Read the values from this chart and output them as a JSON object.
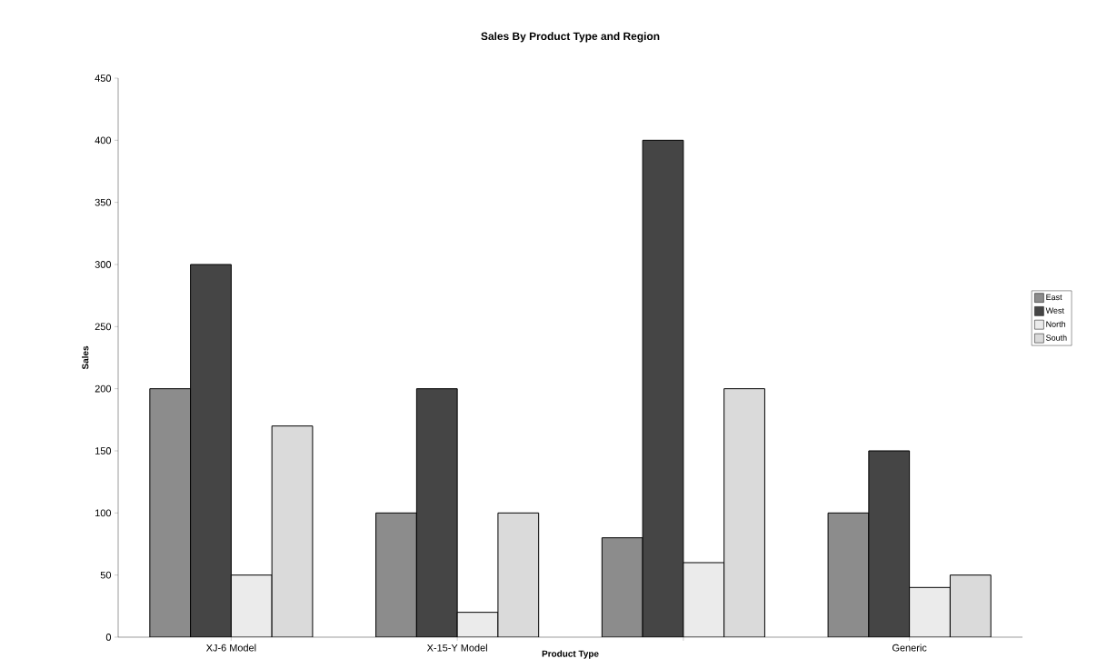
{
  "chart_data": {
    "type": "bar",
    "title": "Sales By Product Type and Region",
    "xlabel": "Product Type",
    "ylabel": "Sales",
    "categories": [
      "XJ-6 Model",
      "X-15-Y Model",
      null,
      "Generic"
    ],
    "series": [
      {
        "name": "East",
        "color": "#8c8c8c",
        "values": [
          200,
          100,
          80,
          100
        ]
      },
      {
        "name": "West",
        "color": "#454545",
        "values": [
          300,
          200,
          400,
          150
        ]
      },
      {
        "name": "North",
        "color": "#ebebeb",
        "values": [
          50,
          20,
          60,
          40
        ]
      },
      {
        "name": "South",
        "color": "#dadada",
        "values": [
          170,
          100,
          200,
          50
        ]
      }
    ],
    "ylim": [
      0,
      450
    ],
    "yticks": [
      0,
      50,
      100,
      150,
      200,
      250,
      300,
      350,
      400,
      450
    ],
    "grid": false,
    "legend": "right"
  }
}
